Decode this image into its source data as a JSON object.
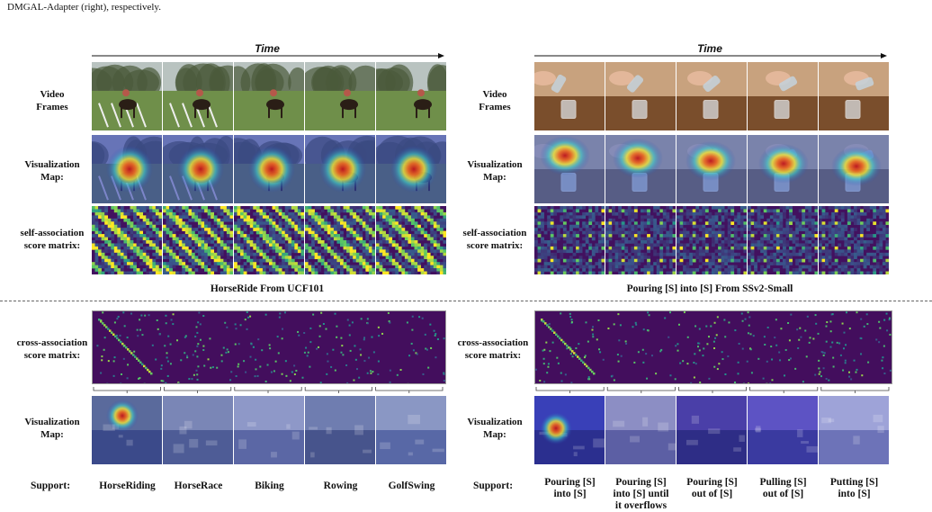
{
  "caption": "DMGAL-Adapter (right), respectively.",
  "left_panel": {
    "time_label": "Time",
    "rows": [
      "Video\nFrames",
      "Visualization\nMap:",
      "self-association\nscore matrix:"
    ],
    "title": "HorseRide From UCF101",
    "cross_label": "cross-association\nscore matrix:",
    "vis_label": "Visualization\nMap:",
    "support_label": "Support:",
    "support_classes": [
      "HorseRiding",
      "HorseRace",
      "Biking",
      "Rowing",
      "GolfSwing"
    ]
  },
  "right_panel": {
    "time_label": "Time",
    "rows": [
      "Video\nFrames",
      "Visualization\nMap:",
      "self-association\nscore matrix:"
    ],
    "title": "Pouring [S] into [S] From SSv2-Small",
    "cross_label": "cross-association\nscore matrix:",
    "vis_label": "Visualization\nMap:",
    "support_label": "Support:",
    "support_classes": [
      "Pouring [S]\ninto [S]",
      "Pouring [S]\ninto [S] until\nit overflows",
      "Pouring [S]\nout of [S]",
      "Pulling [S]\nout of [S]",
      "Putting [S]\ninto [S]"
    ]
  },
  "colors": {
    "viridis_dark": "#3b0f5c",
    "viridis_mid": "#2a8f8c",
    "viridis_bright": "#b8e046",
    "grass": "#6f8f4a",
    "sky": "#c9d2d6",
    "wood": "#7a4e2c",
    "wall": "#c8a27e"
  }
}
